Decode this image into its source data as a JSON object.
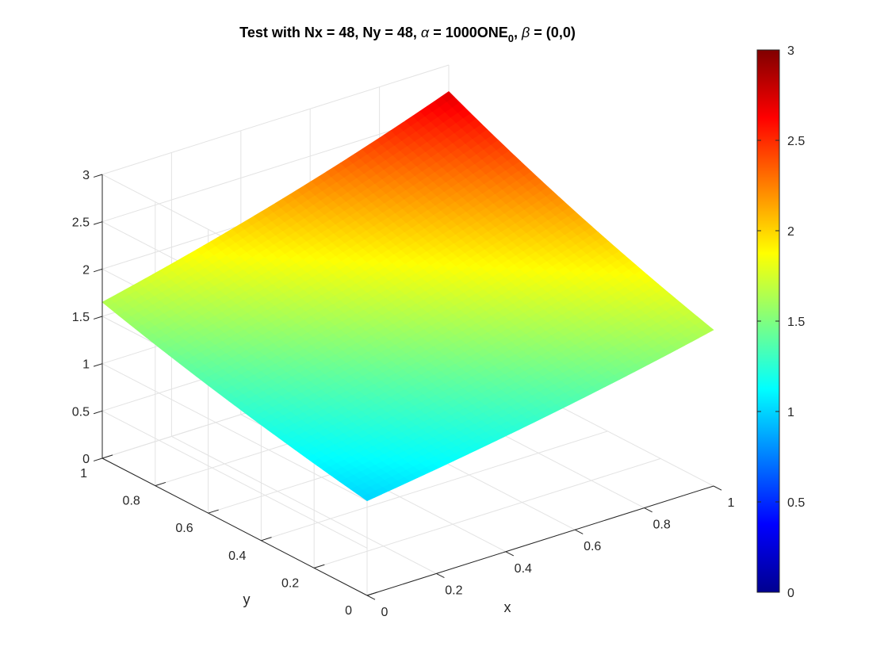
{
  "chart_data": {
    "type": "surface",
    "title": {
      "prefix": "Test with Nx = 48, Ny = 48, ",
      "alpha_symbol": "α",
      "alpha_value": " = 1000ONE",
      "alpha_subscript": "0",
      "separator": ", ",
      "beta_symbol": "β",
      "beta_value": " = (0,0)"
    },
    "xlabel": "x",
    "ylabel": "y",
    "zlabel": "",
    "xlim": [
      0,
      1
    ],
    "ylim": [
      0,
      1
    ],
    "zlim": [
      0,
      3
    ],
    "x_ticks": [
      "0",
      "0.2",
      "0.4",
      "0.6",
      "0.8",
      "1"
    ],
    "y_ticks": [
      "0",
      "0.2",
      "0.4",
      "0.6",
      "0.8",
      "1"
    ],
    "z_ticks": [
      "0",
      "0.5",
      "1",
      "1.5",
      "2",
      "2.5",
      "3"
    ],
    "x_tick_values": [
      0,
      0.2,
      0.4,
      0.6,
      0.8,
      1
    ],
    "y_tick_values": [
      0,
      0.2,
      0.4,
      0.6,
      0.8,
      1
    ],
    "z_tick_values": [
      0,
      0.5,
      1,
      1.5,
      2,
      2.5,
      3
    ],
    "grid": true,
    "colormap": "jet",
    "grid_size": [
      48,
      48
    ],
    "surface_function": "exp(x+y)/e^0 scaled: z(x,y) = exp(x)*exp(y) approx",
    "corner_values": {
      "x0_y0": 1.0,
      "x1_y0": 1.65,
      "x0_y1": 1.65,
      "x1_y1": 2.72
    },
    "colorbar": {
      "limits": [
        0,
        3
      ],
      "ticks": [
        "0",
        "0.5",
        "1",
        "1.5",
        "2",
        "2.5",
        "3"
      ],
      "tick_values": [
        0,
        0.5,
        1,
        1.5,
        2,
        2.5,
        3
      ]
    }
  }
}
